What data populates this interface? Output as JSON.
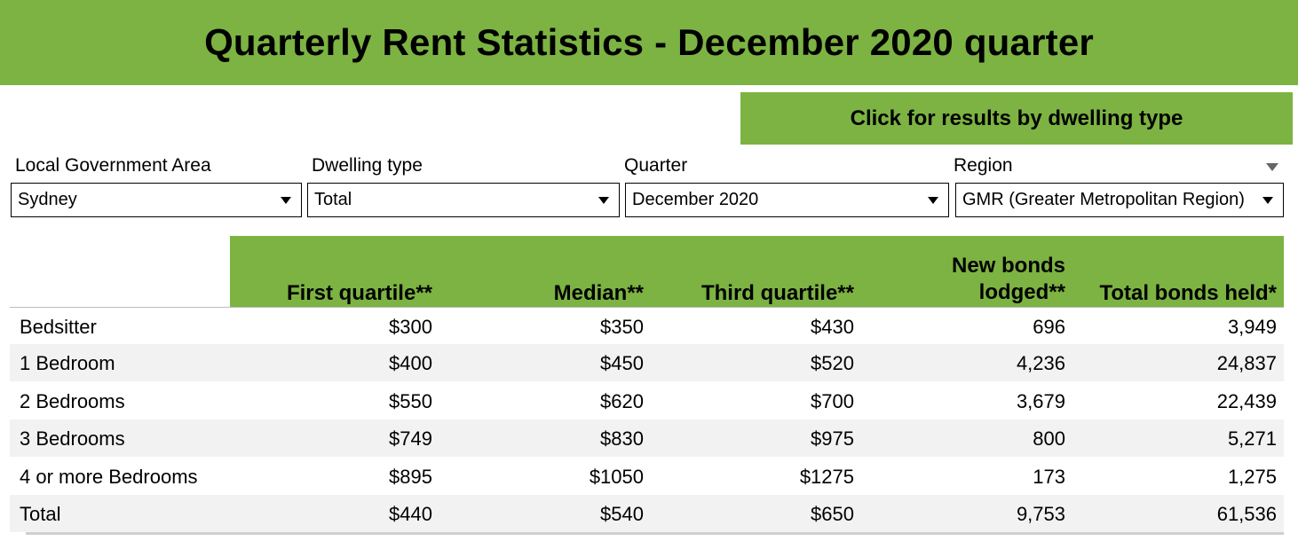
{
  "title": "Quarterly Rent Statistics - December 2020 quarter",
  "dwelling_button_label": "Click for results by dwelling type",
  "filters": [
    {
      "label": "Local Government Area",
      "value": "Sydney"
    },
    {
      "label": "Dwelling type",
      "value": "Total"
    },
    {
      "label": "Quarter",
      "value": "December 2020"
    },
    {
      "label": "Region",
      "value": "GMR (Greater Metropolitan Region)"
    }
  ],
  "table": {
    "columns": [
      "First quartile**",
      "Median**",
      "Third quartile**",
      "New bonds lodged**",
      "Total bonds held*"
    ],
    "new_bonds_line1": "New bonds",
    "new_bonds_line2": "lodged**",
    "rows": [
      {
        "label": "Bedsitter",
        "values": [
          "$300",
          "$350",
          "$430",
          "696",
          "3,949"
        ]
      },
      {
        "label": "1 Bedroom",
        "values": [
          "$400",
          "$450",
          "$520",
          "4,236",
          "24,837"
        ]
      },
      {
        "label": "2 Bedrooms",
        "values": [
          "$550",
          "$620",
          "$700",
          "3,679",
          "22,439"
        ]
      },
      {
        "label": "3 Bedrooms",
        "values": [
          "$749",
          "$830",
          "$975",
          "800",
          "5,271"
        ]
      },
      {
        "label": "4 or more Bedrooms",
        "values": [
          "$895",
          "$1050",
          "$1275",
          "173",
          "1,275"
        ]
      },
      {
        "label": "Total",
        "values": [
          "$440",
          "$540",
          "$650",
          "9,753",
          "61,536"
        ]
      }
    ]
  },
  "colors": {
    "accent": "#7cb342",
    "row_alt": "#f2f2f2"
  }
}
